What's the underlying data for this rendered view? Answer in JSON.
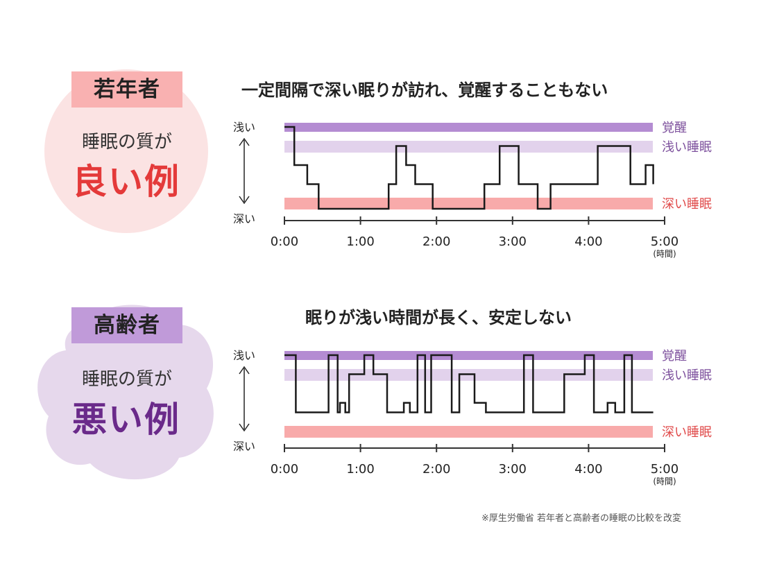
{
  "panels": [
    {
      "badge": "若年者",
      "quality_line1": "睡眠の質が",
      "quality_line2": "良い例",
      "title": "一定間隔で深い眠りが訪れ、覚醒することもない",
      "axis_top": "浅い",
      "axis_bottom": "深い",
      "band_labels": [
        "覚醒",
        "浅い睡眠",
        "深い睡眠"
      ],
      "time_unit": "(時間)"
    },
    {
      "badge": "高齢者",
      "quality_line1": "睡眠の質が",
      "quality_line2": "悪い例",
      "title": "眠りが浅い時間が長く、安定しない",
      "axis_top": "浅い",
      "axis_bottom": "深い",
      "band_labels": [
        "覚醒",
        "浅い睡眠",
        "深い睡眠"
      ],
      "time_unit": "(時間)"
    }
  ],
  "footnote": "※厚生労働省 若年者と高齢者の睡眠の比較を改変",
  "colors": {
    "wake_band": "#b48cd2",
    "light_band": "#e2d2ec",
    "deep_band": "#f8aaaa",
    "young_badge": "#f9b1b1",
    "young_circle": "#fbe3e3",
    "young_accent": "#e43a3a",
    "old_badge": "#c09ad9",
    "old_blob": "#e6d8ec",
    "old_accent": "#6a2a8a",
    "wake_label": "#7c4f9c",
    "light_label": "#7c4f9c",
    "deep_label": "#e04a4a",
    "line": "#1a1a1a"
  },
  "chart_data": [
    {
      "type": "line",
      "title": "一定間隔で深い眠りが訪れ、覚醒することもない",
      "xlabel": "(時間)",
      "ylabel": "",
      "x_ticks": [
        "0:00",
        "1:00",
        "2:00",
        "3:00",
        "4:00",
        "5:00"
      ],
      "xlim": [
        0,
        5
      ],
      "y_categories": [
        "覚醒",
        "浅い睡眠",
        "深い睡眠"
      ],
      "ylim": [
        4,
        0
      ],
      "steps": [
        [
          0,
          0
        ],
        [
          0.13,
          0
        ],
        [
          0.13,
          2
        ],
        [
          0.3,
          2
        ],
        [
          0.3,
          3
        ],
        [
          0.45,
          3
        ],
        [
          0.45,
          4
        ],
        [
          1.37,
          4
        ],
        [
          1.37,
          3
        ],
        [
          1.47,
          3
        ],
        [
          1.47,
          1
        ],
        [
          1.6,
          1
        ],
        [
          1.6,
          2
        ],
        [
          1.72,
          2
        ],
        [
          1.72,
          3
        ],
        [
          1.95,
          3
        ],
        [
          1.95,
          4
        ],
        [
          2.63,
          4
        ],
        [
          2.63,
          3
        ],
        [
          2.83,
          3
        ],
        [
          2.83,
          1
        ],
        [
          3.08,
          1
        ],
        [
          3.08,
          3
        ],
        [
          3.33,
          3
        ],
        [
          3.33,
          4
        ],
        [
          3.5,
          4
        ],
        [
          3.5,
          3
        ],
        [
          4.12,
          3
        ],
        [
          4.12,
          1
        ],
        [
          4.55,
          1
        ],
        [
          4.55,
          3
        ],
        [
          4.75,
          3
        ],
        [
          4.75,
          2
        ],
        [
          4.85,
          2
        ],
        [
          4.85,
          3
        ]
      ]
    },
    {
      "type": "line",
      "title": "眠りが浅い時間が長く、安定しない",
      "xlabel": "(時間)",
      "ylabel": "",
      "x_ticks": [
        "0:00",
        "1:00",
        "2:00",
        "3:00",
        "4:00",
        "5:00"
      ],
      "xlim": [
        0,
        5
      ],
      "y_categories": [
        "覚醒",
        "浅い睡眠",
        "深い睡眠"
      ],
      "ylim": [
        4,
        0
      ],
      "steps": [
        [
          0,
          0
        ],
        [
          0.15,
          0
        ],
        [
          0.15,
          3
        ],
        [
          0.58,
          3
        ],
        [
          0.58,
          0
        ],
        [
          0.7,
          0
        ],
        [
          0.7,
          3
        ],
        [
          0.73,
          3
        ],
        [
          0.73,
          2.5
        ],
        [
          0.8,
          2.5
        ],
        [
          0.8,
          3
        ],
        [
          0.85,
          3
        ],
        [
          0.85,
          1
        ],
        [
          1.05,
          1
        ],
        [
          1.05,
          0
        ],
        [
          1.17,
          0
        ],
        [
          1.17,
          1
        ],
        [
          1.35,
          1
        ],
        [
          1.35,
          3
        ],
        [
          1.57,
          3
        ],
        [
          1.57,
          2.5
        ],
        [
          1.65,
          2.5
        ],
        [
          1.65,
          3
        ],
        [
          1.75,
          3
        ],
        [
          1.75,
          0
        ],
        [
          1.85,
          0
        ],
        [
          1.85,
          3
        ],
        [
          1.93,
          3
        ],
        [
          1.93,
          0
        ],
        [
          2.2,
          0
        ],
        [
          2.2,
          3
        ],
        [
          2.3,
          3
        ],
        [
          2.3,
          1
        ],
        [
          2.5,
          1
        ],
        [
          2.5,
          2.5
        ],
        [
          2.65,
          2.5
        ],
        [
          2.65,
          3
        ],
        [
          3.15,
          3
        ],
        [
          3.15,
          0
        ],
        [
          3.27,
          0
        ],
        [
          3.27,
          3
        ],
        [
          3.68,
          3
        ],
        [
          3.68,
          1
        ],
        [
          3.95,
          1
        ],
        [
          3.95,
          0
        ],
        [
          4.07,
          0
        ],
        [
          4.07,
          3
        ],
        [
          4.25,
          3
        ],
        [
          4.25,
          2.5
        ],
        [
          4.35,
          2.5
        ],
        [
          4.35,
          3
        ],
        [
          4.47,
          3
        ],
        [
          4.47,
          0
        ],
        [
          4.57,
          0
        ],
        [
          4.57,
          3
        ],
        [
          4.85,
          3
        ]
      ]
    }
  ]
}
